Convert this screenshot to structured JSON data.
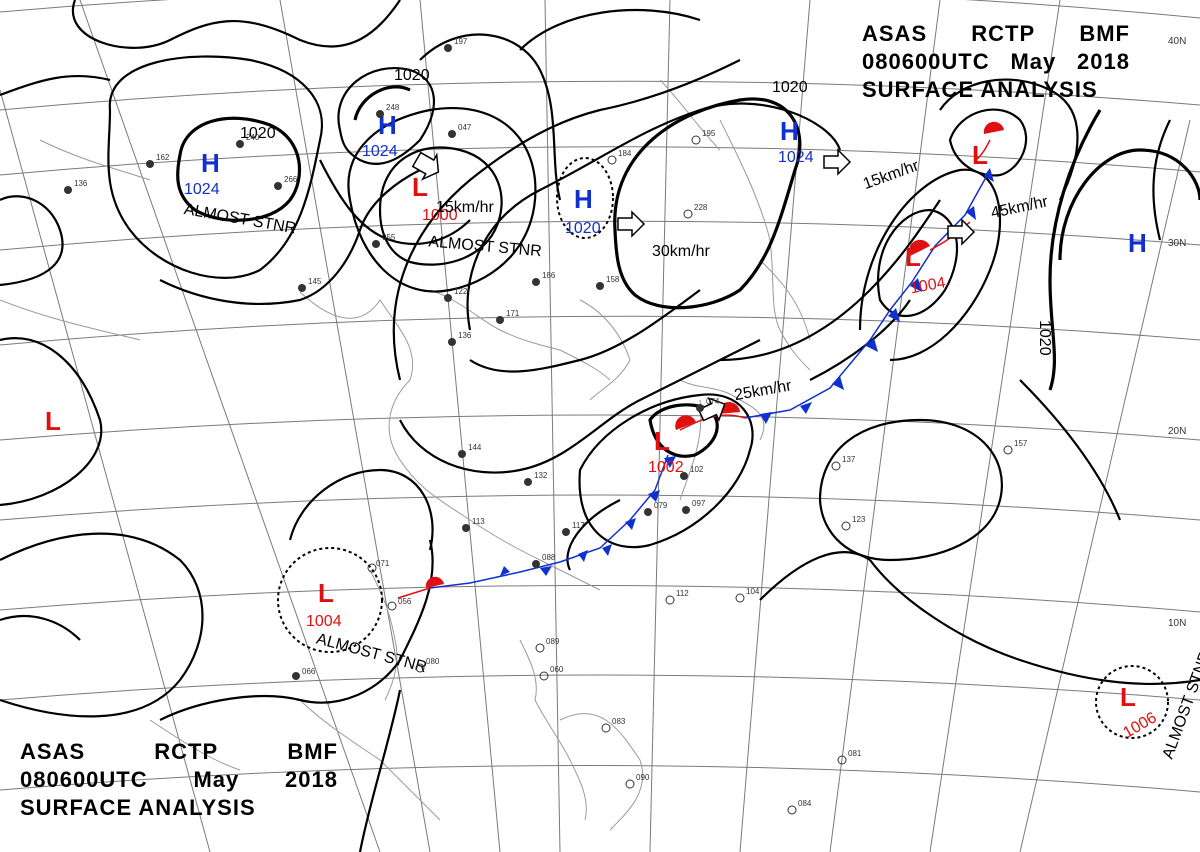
{
  "header_top": {
    "line1": [
      "ASAS",
      "RCTP",
      "BMF"
    ],
    "line2": [
      "080600UTC",
      "May",
      "2018"
    ],
    "line3": "SURFACE ANALYSIS"
  },
  "header_bottom": {
    "line1": [
      "ASAS",
      "RCTP",
      "BMF"
    ],
    "line2": [
      "080600UTC",
      "May",
      "2018"
    ],
    "line3": "SURFACE ANALYSIS"
  },
  "colors": {
    "high": "#1030d0",
    "low": "#e01010",
    "front": "#1030d0",
    "warm": "#e01010",
    "isobar": "#000000",
    "grid": "#7a7a7a"
  },
  "lat_labels": [
    "40N",
    "30N",
    "20N",
    "10N"
  ],
  "systems": [
    {
      "type": "H",
      "pressure": "1024",
      "motion": "ALMOST STNR"
    },
    {
      "type": "H",
      "pressure": "1024",
      "motion": ""
    },
    {
      "type": "L",
      "pressure": "1000",
      "motion": "15km/hr"
    },
    {
      "type": "L",
      "pressure": "",
      "motion": "ALMOST STNR"
    },
    {
      "type": "H",
      "pressure": "1020",
      "motion": "30km/hr"
    },
    {
      "type": "H",
      "pressure": "1024",
      "motion": "15km/hr"
    },
    {
      "type": "L",
      "pressure": "",
      "motion": ""
    },
    {
      "type": "L",
      "pressure": "1004",
      "motion": "45km/hr"
    },
    {
      "type": "L",
      "pressure": "1002",
      "motion": "25km/hr"
    },
    {
      "type": "L",
      "pressure": "1004",
      "motion": "ALMOST STNR"
    },
    {
      "type": "L",
      "pressure": "",
      "motion": ""
    },
    {
      "type": "L",
      "pressure": "1006",
      "motion": "ALMOST STNR"
    },
    {
      "type": "H",
      "pressure": "",
      "motion": ""
    }
  ],
  "isobar_labels": [
    "1020",
    "1020",
    "1020",
    "1020"
  ],
  "station_samples": [
    "083",
    "089",
    "060",
    "090",
    "084",
    "081",
    "104",
    "112",
    "137",
    "123",
    "157",
    "144",
    "132",
    "113",
    "117",
    "088",
    "071",
    "056",
    "080",
    "066",
    "228",
    "195",
    "184",
    "186",
    "158",
    "171",
    "136",
    "122",
    "055",
    "240",
    "248",
    "266",
    "162",
    "136",
    "145",
    "197",
    "047",
    "074",
    "097",
    "079",
    "102"
  ]
}
